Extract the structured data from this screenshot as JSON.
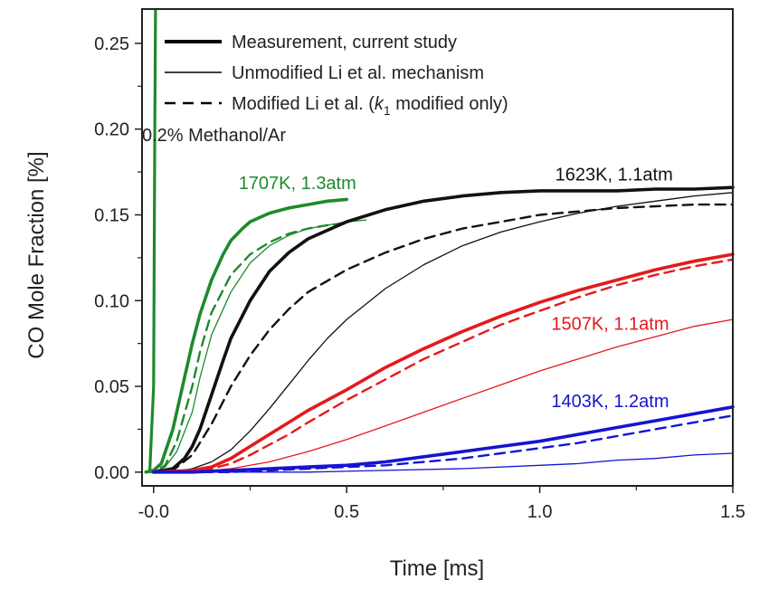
{
  "chart_data": {
    "type": "line",
    "xlabel": "Time [ms]",
    "ylabel": "CO Mole Fraction [%]",
    "xlim": [
      -0.03,
      1.5
    ],
    "ylim": [
      -0.008,
      0.27
    ],
    "x_ticks": [
      "-0.0",
      "0.5",
      "1.0",
      "1.5"
    ],
    "x_tick_values": [
      0,
      0.5,
      1.0,
      1.5
    ],
    "y_ticks": [
      "0.00",
      "0.05",
      "0.10",
      "0.15",
      "0.20",
      "0.25"
    ],
    "y_tick_values": [
      0,
      0.05,
      0.1,
      0.15,
      0.2,
      0.25
    ],
    "legend": {
      "placement": "top-left",
      "entries": [
        {
          "label": "Measurement, current study",
          "style": "thick"
        },
        {
          "label": "Unmodified Li et al. mechanism",
          "style": "thin"
        },
        {
          "label_prefix": "Modified Li et al. (",
          "label_k": "k",
          "label_sub": "1",
          "label_suffix": " modified only)",
          "style": "dashed"
        }
      ]
    },
    "annotations": [
      {
        "text": "0.2% Methanol/Ar",
        "x": -0.03,
        "y": 0.193,
        "color": "#222222"
      },
      {
        "text": "1707K, 1.3atm",
        "x": 0.22,
        "y": 0.165,
        "color": "#1e8a2c"
      },
      {
        "text": "1623K, 1.1atm",
        "x": 1.04,
        "y": 0.17,
        "color": "#111111"
      },
      {
        "text": "1507K, 1.1atm",
        "x": 1.03,
        "y": 0.083,
        "color": "#e41a1c"
      },
      {
        "text": "1403K, 1.2atm",
        "x": 1.03,
        "y": 0.038,
        "color": "#1414d2"
      }
    ],
    "spike": {
      "color": "#1e8a2c",
      "points": [
        [
          -0.01,
          0.0
        ],
        [
          0.0,
          0.05
        ],
        [
          0.003,
          0.2
        ],
        [
          0.005,
          0.27
        ]
      ]
    },
    "series": [
      {
        "color": "#1e8a2c",
        "style": "measurement",
        "x": [
          -0.02,
          0.0,
          0.02,
          0.05,
          0.08,
          0.1,
          0.12,
          0.15,
          0.18,
          0.2,
          0.23,
          0.25,
          0.28,
          0.3,
          0.35,
          0.4,
          0.45,
          0.5
        ],
        "y": [
          0.0,
          0.001,
          0.005,
          0.025,
          0.055,
          0.075,
          0.092,
          0.112,
          0.127,
          0.135,
          0.142,
          0.146,
          0.149,
          0.151,
          0.154,
          0.156,
          0.158,
          0.159
        ]
      },
      {
        "color": "#1e8a2c",
        "style": "model-thin",
        "x": [
          -0.02,
          0.0,
          0.03,
          0.06,
          0.1,
          0.12,
          0.15,
          0.2,
          0.25,
          0.3,
          0.35,
          0.4,
          0.45,
          0.5,
          0.55
        ],
        "y": [
          0.0,
          0.0,
          0.003,
          0.012,
          0.035,
          0.055,
          0.08,
          0.105,
          0.122,
          0.132,
          0.138,
          0.142,
          0.144,
          0.146,
          0.147
        ]
      },
      {
        "color": "#1e8a2c",
        "style": "model-dashed",
        "x": [
          -0.02,
          0.0,
          0.03,
          0.06,
          0.1,
          0.12,
          0.15,
          0.2,
          0.25,
          0.3,
          0.35,
          0.4,
          0.45,
          0.5
        ],
        "y": [
          0.0,
          0.0,
          0.004,
          0.018,
          0.05,
          0.07,
          0.093,
          0.115,
          0.127,
          0.134,
          0.139,
          0.142,
          0.144,
          0.145
        ]
      },
      {
        "color": "#111111",
        "style": "measurement",
        "x": [
          0.0,
          0.05,
          0.08,
          0.1,
          0.12,
          0.15,
          0.18,
          0.2,
          0.25,
          0.3,
          0.35,
          0.4,
          0.5,
          0.6,
          0.7,
          0.8,
          0.9,
          1.0,
          1.1,
          1.2,
          1.3,
          1.4,
          1.5
        ],
        "y": [
          0.0,
          0.002,
          0.008,
          0.015,
          0.025,
          0.045,
          0.065,
          0.078,
          0.1,
          0.117,
          0.128,
          0.136,
          0.146,
          0.153,
          0.158,
          0.161,
          0.163,
          0.164,
          0.164,
          0.164,
          0.165,
          0.165,
          0.166
        ]
      },
      {
        "color": "#111111",
        "style": "model-thin",
        "x": [
          0.0,
          0.05,
          0.1,
          0.15,
          0.2,
          0.25,
          0.3,
          0.35,
          0.4,
          0.45,
          0.5,
          0.6,
          0.7,
          0.8,
          0.9,
          1.0,
          1.1,
          1.2,
          1.3,
          1.4,
          1.5
        ],
        "y": [
          0.0,
          0.0,
          0.002,
          0.006,
          0.013,
          0.024,
          0.037,
          0.051,
          0.065,
          0.078,
          0.089,
          0.107,
          0.121,
          0.132,
          0.14,
          0.146,
          0.151,
          0.155,
          0.158,
          0.161,
          0.163
        ]
      },
      {
        "color": "#111111",
        "style": "model-dashed",
        "x": [
          0.0,
          0.05,
          0.1,
          0.15,
          0.2,
          0.25,
          0.3,
          0.35,
          0.4,
          0.5,
          0.6,
          0.7,
          0.8,
          0.9,
          1.0,
          1.1,
          1.2,
          1.3,
          1.4,
          1.5
        ],
        "y": [
          0.0,
          0.001,
          0.01,
          0.028,
          0.05,
          0.068,
          0.083,
          0.095,
          0.105,
          0.118,
          0.128,
          0.136,
          0.142,
          0.146,
          0.15,
          0.152,
          0.154,
          0.155,
          0.156,
          0.156
        ]
      },
      {
        "color": "#e41a1c",
        "style": "measurement",
        "x": [
          0.0,
          0.1,
          0.15,
          0.2,
          0.25,
          0.3,
          0.35,
          0.4,
          0.5,
          0.6,
          0.7,
          0.8,
          0.9,
          1.0,
          1.1,
          1.2,
          1.3,
          1.4,
          1.5
        ],
        "y": [
          0.0,
          0.001,
          0.003,
          0.008,
          0.015,
          0.022,
          0.029,
          0.036,
          0.048,
          0.061,
          0.072,
          0.082,
          0.091,
          0.099,
          0.106,
          0.112,
          0.118,
          0.123,
          0.127
        ]
      },
      {
        "color": "#e41a1c",
        "style": "model-dashed",
        "x": [
          0.0,
          0.1,
          0.15,
          0.2,
          0.25,
          0.3,
          0.35,
          0.4,
          0.5,
          0.6,
          0.7,
          0.8,
          0.9,
          1.0,
          1.1,
          1.2,
          1.3,
          1.4,
          1.5
        ],
        "y": [
          0.0,
          0.001,
          0.002,
          0.005,
          0.01,
          0.016,
          0.022,
          0.029,
          0.042,
          0.054,
          0.066,
          0.076,
          0.086,
          0.094,
          0.102,
          0.109,
          0.115,
          0.12,
          0.124
        ]
      },
      {
        "color": "#e41a1c",
        "style": "model-thin",
        "x": [
          0.0,
          0.1,
          0.2,
          0.3,
          0.4,
          0.5,
          0.6,
          0.7,
          0.8,
          0.9,
          1.0,
          1.1,
          1.2,
          1.3,
          1.4,
          1.5
        ],
        "y": [
          0.0,
          0.0,
          0.002,
          0.006,
          0.012,
          0.019,
          0.027,
          0.035,
          0.043,
          0.051,
          0.059,
          0.066,
          0.073,
          0.079,
          0.085,
          0.089
        ]
      },
      {
        "color": "#1414d2",
        "style": "measurement",
        "x": [
          0.0,
          0.1,
          0.2,
          0.3,
          0.4,
          0.5,
          0.6,
          0.7,
          0.8,
          0.9,
          1.0,
          1.1,
          1.2,
          1.3,
          1.4,
          1.5
        ],
        "y": [
          0.0,
          0.0,
          0.001,
          0.002,
          0.003,
          0.004,
          0.006,
          0.009,
          0.012,
          0.015,
          0.018,
          0.022,
          0.026,
          0.03,
          0.034,
          0.038
        ]
      },
      {
        "color": "#1414d2",
        "style": "model-dashed",
        "x": [
          0.0,
          0.1,
          0.2,
          0.3,
          0.4,
          0.5,
          0.6,
          0.7,
          0.8,
          0.9,
          1.0,
          1.1,
          1.2,
          1.3,
          1.4,
          1.5
        ],
        "y": [
          0.0,
          0.0,
          0.0,
          0.001,
          0.002,
          0.003,
          0.004,
          0.006,
          0.008,
          0.011,
          0.014,
          0.017,
          0.021,
          0.025,
          0.029,
          0.033
        ]
      },
      {
        "color": "#1414d2",
        "style": "model-thin",
        "x": [
          0.0,
          0.2,
          0.4,
          0.6,
          0.8,
          1.0,
          1.1,
          1.2,
          1.3,
          1.4,
          1.5
        ],
        "y": [
          0.0,
          0.0,
          0.0,
          0.001,
          0.002,
          0.004,
          0.005,
          0.007,
          0.008,
          0.01,
          0.011
        ]
      }
    ]
  }
}
